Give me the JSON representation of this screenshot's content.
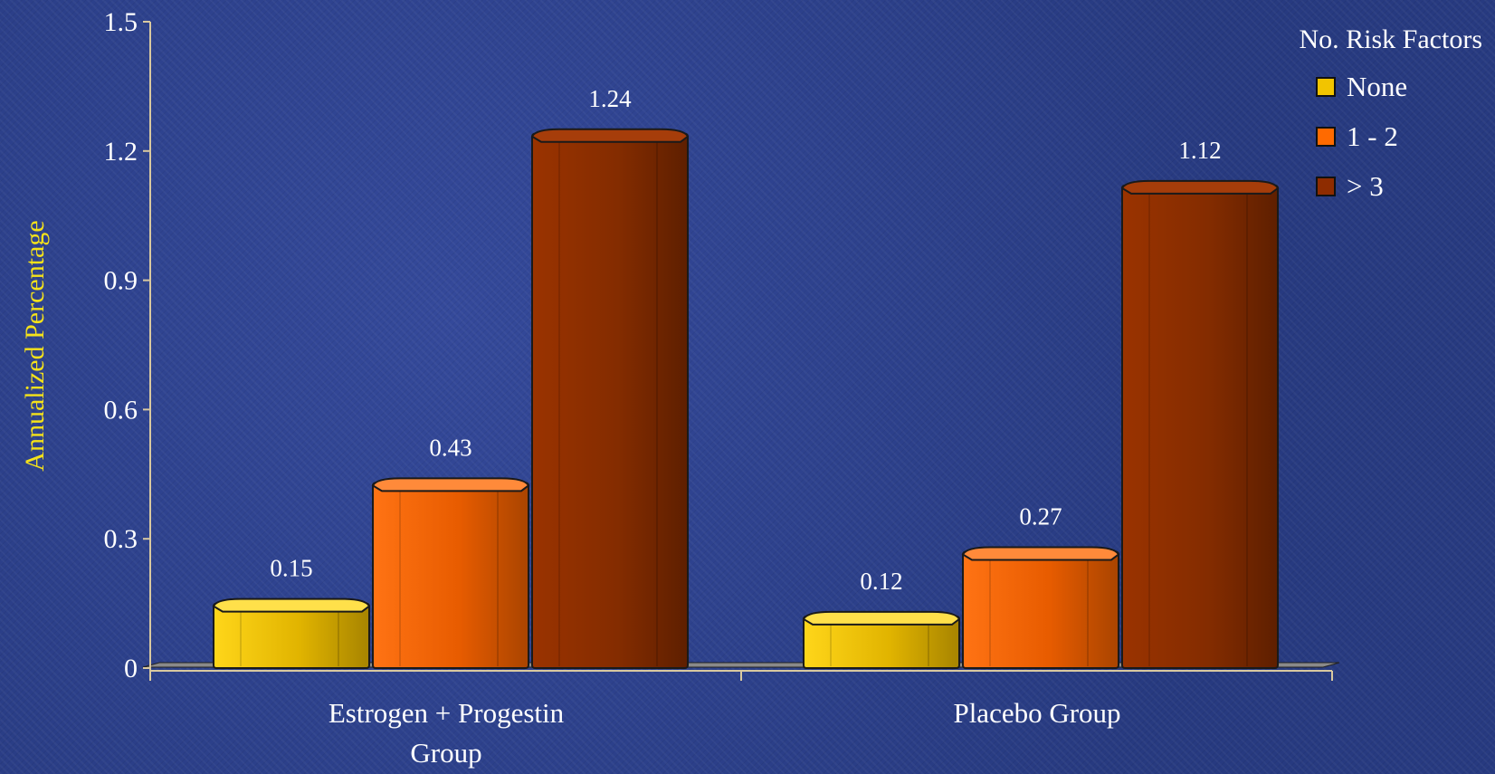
{
  "chart_data": {
    "type": "bar",
    "ylabel": "Annualized Percentage",
    "xlabel": "",
    "ylim": [
      0,
      1.5
    ],
    "yticks": [
      "0",
      "0.3",
      "0.6",
      "0.9",
      "1.2",
      "1.5"
    ],
    "categories": [
      [
        "Estrogen + Progestin",
        "Group"
      ],
      [
        "Placebo Group"
      ]
    ],
    "legend_title": "No. Risk Factors",
    "legend_position": "top-right",
    "grid": false,
    "series": [
      {
        "name": "None",
        "color": "#f2c400",
        "values": [
          0.15,
          0.12
        ],
        "labels": [
          "0.15",
          "0.12"
        ]
      },
      {
        "name": "1 - 2",
        "color": "#ff6a00",
        "values": [
          0.43,
          0.27
        ],
        "labels": [
          "0.43",
          "0.27"
        ]
      },
      {
        "name": "> 3",
        "color": "#8e2c00",
        "values": [
          1.24,
          1.12
        ],
        "labels": [
          "1.24",
          "1.12"
        ]
      }
    ]
  }
}
